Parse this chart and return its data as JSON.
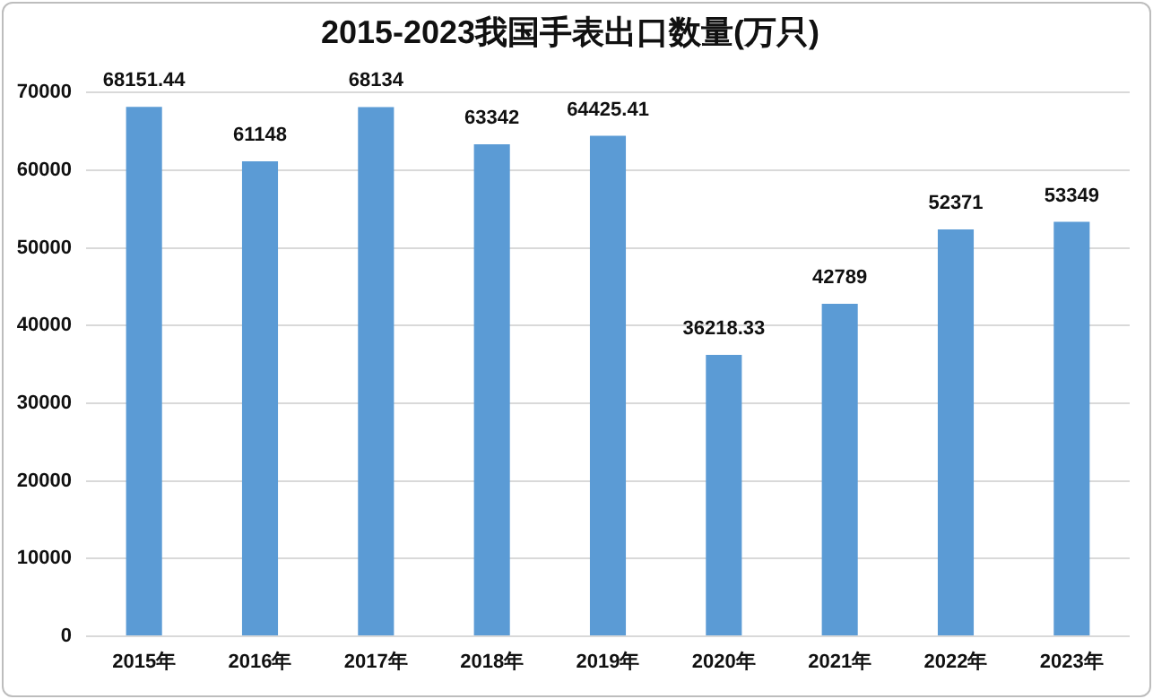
{
  "chart_data": {
    "type": "bar",
    "title": "2015-2023我国手表出口数量(万只)",
    "categories": [
      "2015年",
      "2016年",
      "2017年",
      "2018年",
      "2019年",
      "2020年",
      "2021年",
      "2022年",
      "2023年"
    ],
    "values": [
      68151.44,
      61148,
      68134,
      63342,
      64425.41,
      36218.33,
      42789,
      52371,
      53349
    ],
    "color": "#5b9bd5",
    "ylim": [
      0,
      70000
    ],
    "yticks": [
      0,
      10000,
      20000,
      30000,
      40000,
      50000,
      60000,
      70000
    ],
    "grid": "y",
    "data_labels": true
  }
}
